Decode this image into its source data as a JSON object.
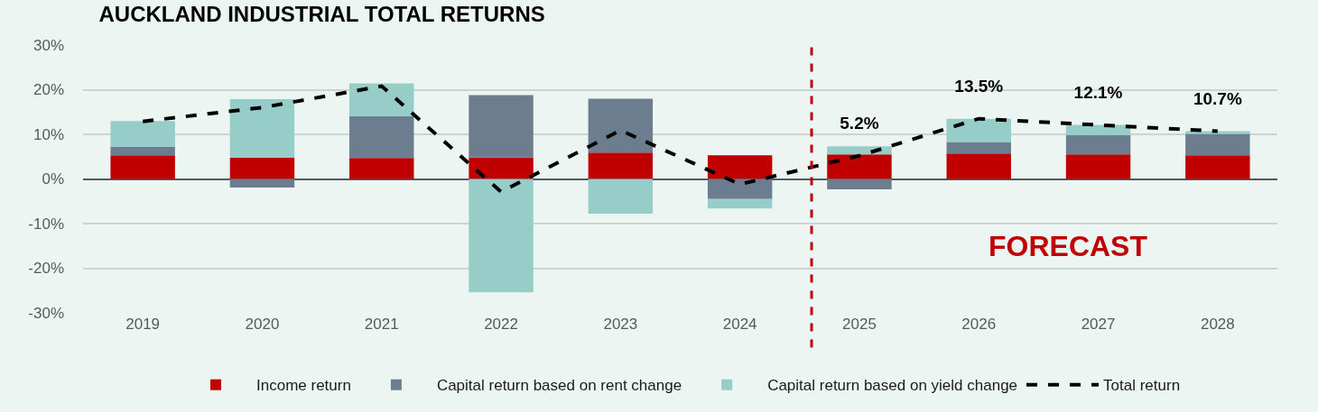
{
  "chart_data": {
    "type": "bar",
    "title": "AUCKLAND INDUSTRIAL TOTAL RETURNS",
    "categories": [
      "2019",
      "2020",
      "2021",
      "2022",
      "2023",
      "2024",
      "2025",
      "2026",
      "2027",
      "2028"
    ],
    "stacked": true,
    "series": [
      {
        "name": "Income return",
        "color": "#c00000",
        "values": [
          5.3,
          4.8,
          4.7,
          4.8,
          5.9,
          5.3,
          5.5,
          5.7,
          5.5,
          5.3
        ]
      },
      {
        "name": "Capital return based on rent change",
        "color": "#6b7d8e",
        "values": [
          1.9,
          -1.9,
          9.4,
          14.0,
          12.1,
          -4.5,
          -2.3,
          2.6,
          4.3,
          4.8
        ]
      },
      {
        "name": "Capital return based on yield change",
        "color": "#96cdc9",
        "values": [
          5.8,
          13.1,
          7.3,
          -25.4,
          -7.8,
          -2.1,
          1.8,
          5.2,
          2.3,
          0.6
        ]
      },
      {
        "name": "Total return",
        "type": "line",
        "color": "#000000",
        "line_style": "dashed",
        "marker": "none",
        "values": [
          12.9,
          16.0,
          20.8,
          -2.9,
          10.9,
          -1.2,
          5.2,
          13.5,
          12.1,
          10.7
        ],
        "value_labels": [
          null,
          null,
          null,
          null,
          null,
          null,
          "5.2%",
          "13.5%",
          "12.1%",
          "10.7%"
        ]
      }
    ],
    "ylim": [
      -30,
      30
    ],
    "yticks": [
      {
        "value": -30,
        "label": "-30%"
      },
      {
        "value": -20,
        "label": "-20%"
      },
      {
        "value": -10,
        "label": "-10%"
      },
      {
        "value": 0,
        "label": "0%"
      },
      {
        "value": 10,
        "label": "10%"
      },
      {
        "value": 20,
        "label": "20%"
      },
      {
        "value": 30,
        "label": "30%"
      }
    ],
    "grid": "y",
    "legend": "bottom",
    "ref_lines": [
      {
        "axis": "x",
        "value": "2025",
        "color": "#c00000",
        "line_style": "dashed"
      }
    ],
    "annotations": [
      "FORECAST"
    ]
  }
}
